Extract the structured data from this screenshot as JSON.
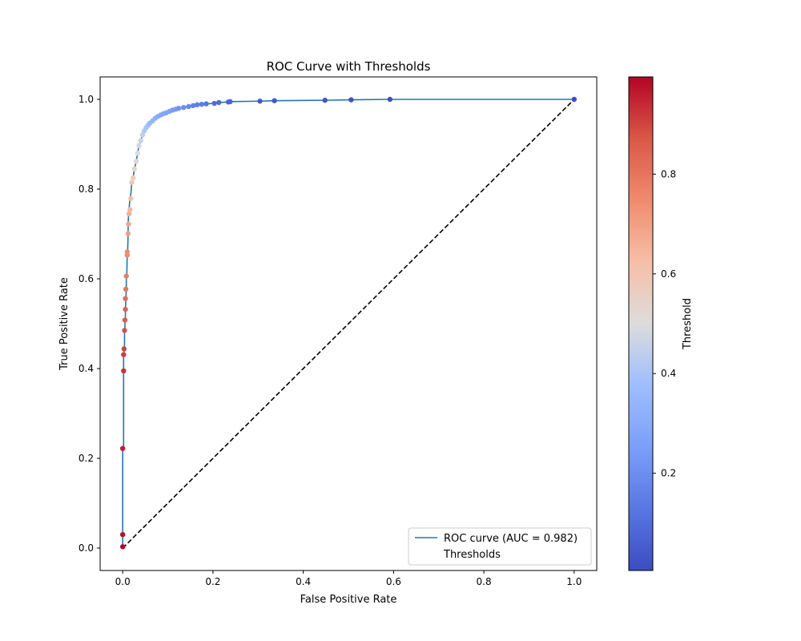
{
  "chart_data": {
    "type": "line",
    "title": "ROC Curve with Thresholds",
    "xlabel": "False Positive Rate",
    "ylabel": "True Positive Rate",
    "xlim": [
      -0.05,
      1.05
    ],
    "ylim": [
      -0.05,
      1.05
    ],
    "x_ticks": [
      "0.0",
      "0.2",
      "0.4",
      "0.6",
      "0.8",
      "1.0"
    ],
    "y_ticks": [
      "0.0",
      "0.2",
      "0.4",
      "0.6",
      "0.8",
      "1.0"
    ],
    "grid": false,
    "legend_position": "lower-right",
    "series": [
      {
        "name": "ROC curve (AUC = 0.982)",
        "color": "#1f77b4",
        "x": [
          0.0,
          0.0,
          0.0,
          0.0,
          0.002,
          0.002,
          0.002,
          0.003,
          0.003,
          0.004,
          0.004,
          0.005,
          0.005,
          0.006,
          0.006,
          0.007,
          0.008,
          0.008,
          0.009,
          0.01,
          0.01,
          0.011,
          0.012,
          0.012,
          0.013,
          0.014,
          0.016,
          0.018,
          0.02,
          0.023,
          0.026,
          0.03,
          0.033,
          0.036,
          0.04,
          0.044,
          0.048,
          0.052,
          0.056,
          0.06,
          0.066,
          0.072,
          0.078,
          0.084,
          0.09,
          0.096,
          0.103,
          0.11,
          0.117,
          0.124,
          0.135,
          0.146,
          0.156,
          0.165,
          0.175,
          0.185,
          0.203,
          0.213,
          0.234,
          0.238,
          0.304,
          0.336,
          0.448,
          0.506,
          0.592,
          1.0
        ],
        "y": [
          0.0,
          0.003,
          0.03,
          0.222,
          0.222,
          0.395,
          0.431,
          0.431,
          0.444,
          0.444,
          0.485,
          0.485,
          0.508,
          0.508,
          0.532,
          0.556,
          0.577,
          0.606,
          0.606,
          0.653,
          0.66,
          0.662,
          0.701,
          0.722,
          0.745,
          0.754,
          0.779,
          0.788,
          0.815,
          0.825,
          0.845,
          0.862,
          0.88,
          0.897,
          0.908,
          0.921,
          0.93,
          0.937,
          0.942,
          0.947,
          0.952,
          0.958,
          0.962,
          0.965,
          0.968,
          0.97,
          0.973,
          0.976,
          0.978,
          0.98,
          0.982,
          0.984,
          0.986,
          0.988,
          0.989,
          0.99,
          0.991,
          0.993,
          0.994,
          0.995,
          0.996,
          0.997,
          0.998,
          0.999,
          1.0,
          1.0
        ]
      },
      {
        "name": "Thresholds",
        "type": "scatter",
        "x": [
          0.0,
          0.0,
          0.0,
          0.002,
          0.002,
          0.003,
          0.004,
          0.005,
          0.006,
          0.006,
          0.007,
          0.008,
          0.01,
          0.01,
          0.012,
          0.013,
          0.014,
          0.016,
          0.018,
          0.02,
          0.023,
          0.026,
          0.03,
          0.033,
          0.036,
          0.04,
          0.044,
          0.048,
          0.052,
          0.056,
          0.06,
          0.066,
          0.072,
          0.078,
          0.084,
          0.09,
          0.096,
          0.103,
          0.11,
          0.117,
          0.124,
          0.135,
          0.146,
          0.156,
          0.165,
          0.175,
          0.185,
          0.203,
          0.213,
          0.234,
          0.238,
          0.304,
          0.336,
          0.448,
          0.506,
          0.592,
          1.0
        ],
        "y": [
          0.003,
          0.03,
          0.222,
          0.395,
          0.431,
          0.444,
          0.485,
          0.508,
          0.532,
          0.556,
          0.577,
          0.606,
          0.653,
          0.66,
          0.701,
          0.722,
          0.745,
          0.754,
          0.779,
          0.815,
          0.825,
          0.845,
          0.862,
          0.88,
          0.897,
          0.908,
          0.921,
          0.93,
          0.937,
          0.942,
          0.947,
          0.952,
          0.958,
          0.962,
          0.965,
          0.968,
          0.97,
          0.973,
          0.976,
          0.978,
          0.98,
          0.982,
          0.984,
          0.986,
          0.988,
          0.989,
          0.99,
          0.991,
          0.993,
          0.994,
          0.995,
          0.996,
          0.997,
          0.998,
          0.999,
          1.0,
          1.0
        ],
        "threshold": [
          0.99,
          0.98,
          0.96,
          0.93,
          0.91,
          0.9,
          0.88,
          0.86,
          0.84,
          0.82,
          0.8,
          0.78,
          0.75,
          0.74,
          0.7,
          0.68,
          0.66,
          0.64,
          0.62,
          0.6,
          0.57,
          0.55,
          0.52,
          0.5,
          0.48,
          0.46,
          0.44,
          0.42,
          0.4,
          0.38,
          0.36,
          0.34,
          0.32,
          0.3,
          0.29,
          0.28,
          0.27,
          0.26,
          0.25,
          0.24,
          0.22,
          0.2,
          0.18,
          0.16,
          0.15,
          0.14,
          0.12,
          0.1,
          0.09,
          0.08,
          0.07,
          0.05,
          0.04,
          0.03,
          0.02,
          0.01,
          0.005
        ]
      },
      {
        "name": "",
        "style": "dashed",
        "color": "#000000",
        "x": [
          0,
          1
        ],
        "y": [
          0,
          1
        ]
      }
    ],
    "colorbar": {
      "label": "Threshold",
      "colormap": "coolwarm",
      "range": [
        0.005,
        0.995
      ],
      "ticks": [
        0.2,
        0.4,
        0.6,
        0.8
      ],
      "tick_labels": [
        "0.2",
        "0.4",
        "0.6",
        "0.8"
      ]
    }
  }
}
